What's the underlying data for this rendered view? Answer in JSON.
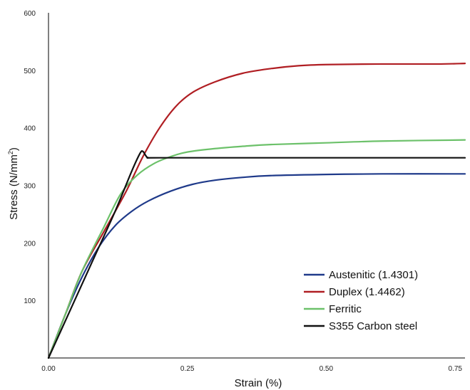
{
  "chart_data": {
    "type": "line",
    "xlabel": "Strain (%)",
    "ylabel_main": "Stress (N/mm",
    "ylabel_sup": "2",
    "ylabel_end": ")",
    "xlim": [
      0,
      0.75
    ],
    "ylim": [
      0,
      600
    ],
    "xticks": [
      {
        "value": 0,
        "label": "0.00"
      },
      {
        "value": 0.25,
        "label": "0.25"
      },
      {
        "value": 0.5,
        "label": "0.50"
      },
      {
        "value": 0.75,
        "label": "0.75"
      }
    ],
    "yticks": [
      {
        "value": 100,
        "label": "100"
      },
      {
        "value": 200,
        "label": "200"
      },
      {
        "value": 300,
        "label": "300"
      },
      {
        "value": 400,
        "label": "400"
      },
      {
        "value": 500,
        "label": "500"
      },
      {
        "value": 600,
        "label": "600"
      }
    ],
    "grid": false,
    "legend_position": "bottom-right",
    "series": [
      {
        "name": "Austenitic (1.4301)",
        "color": "#1f3a8a",
        "points": [
          [
            0,
            0
          ],
          [
            0.03,
            75
          ],
          [
            0.06,
            140
          ],
          [
            0.09,
            192
          ],
          [
            0.12,
            230
          ],
          [
            0.15,
            255
          ],
          [
            0.18,
            273
          ],
          [
            0.22,
            290
          ],
          [
            0.26,
            302
          ],
          [
            0.3,
            309
          ],
          [
            0.35,
            314
          ],
          [
            0.4,
            317
          ],
          [
            0.5,
            319
          ],
          [
            0.6,
            320
          ],
          [
            0.75,
            320
          ]
        ]
      },
      {
        "name": "Duplex (1.4462)",
        "color": "#b01e23",
        "points": [
          [
            0,
            0
          ],
          [
            0.03,
            75
          ],
          [
            0.06,
            150
          ],
          [
            0.1,
            220
          ],
          [
            0.14,
            290
          ],
          [
            0.17,
            350
          ],
          [
            0.2,
            400
          ],
          [
            0.23,
            438
          ],
          [
            0.26,
            462
          ],
          [
            0.3,
            480
          ],
          [
            0.35,
            495
          ],
          [
            0.4,
            503
          ],
          [
            0.45,
            508
          ],
          [
            0.5,
            510
          ],
          [
            0.6,
            511
          ],
          [
            0.7,
            511
          ],
          [
            0.75,
            512
          ]
        ]
      },
      {
        "name": "Ferritic",
        "color": "#6cc16a",
        "points": [
          [
            0,
            0
          ],
          [
            0.03,
            75
          ],
          [
            0.06,
            150
          ],
          [
            0.1,
            228
          ],
          [
            0.13,
            285
          ],
          [
            0.16,
            318
          ],
          [
            0.19,
            338
          ],
          [
            0.22,
            350
          ],
          [
            0.25,
            358
          ],
          [
            0.3,
            364
          ],
          [
            0.35,
            368
          ],
          [
            0.4,
            371
          ],
          [
            0.5,
            374
          ],
          [
            0.6,
            377
          ],
          [
            0.75,
            379
          ]
        ]
      },
      {
        "name": "S355 Carbon steel",
        "color": "#111111",
        "points": [
          [
            0,
            0
          ],
          [
            0.04,
            85
          ],
          [
            0.08,
            170
          ],
          [
            0.12,
            255
          ],
          [
            0.15,
            325
          ],
          [
            0.165,
            356
          ],
          [
            0.17,
            359
          ],
          [
            0.175,
            352
          ],
          [
            0.18,
            348
          ],
          [
            0.2,
            348
          ],
          [
            0.4,
            348
          ],
          [
            0.6,
            348
          ],
          [
            0.75,
            348
          ]
        ]
      }
    ]
  }
}
